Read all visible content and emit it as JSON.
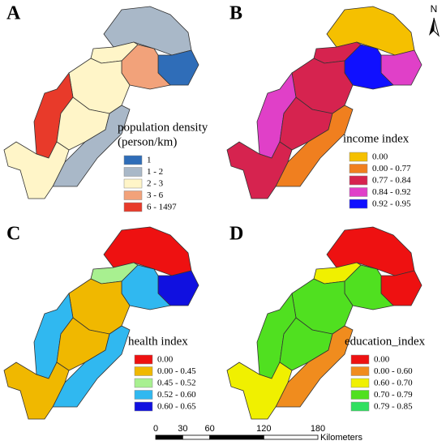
{
  "north": "N",
  "panels": [
    {
      "letter": "A",
      "legend": {
        "title": [
          "population density",
          "(person/km)"
        ],
        "items": [
          {
            "label": "1",
            "color": "#2f6db8"
          },
          {
            "label": "1 - 2",
            "color": "#a9b8c8"
          },
          {
            "label": "2 - 3",
            "color": "#fff5c8"
          },
          {
            "label": "3 - 6",
            "color": "#f2a27a"
          },
          {
            "label": "6 - 1497",
            "color": "#e83a2a"
          }
        ]
      }
    },
    {
      "letter": "B",
      "legend": {
        "title": [
          "income index"
        ],
        "items": [
          {
            "label": "0.00",
            "color": "#f5c000"
          },
          {
            "label": "0.00 - 0.77",
            "color": "#f07f1f"
          },
          {
            "label": "0.77 - 0.84",
            "color": "#d6234f"
          },
          {
            "label": "0.84 - 0.92",
            "color": "#e040c8"
          },
          {
            "label": "0.92 - 0.95",
            "color": "#1010ff"
          }
        ]
      }
    },
    {
      "letter": "C",
      "legend": {
        "title": [
          "health index"
        ],
        "items": [
          {
            "label": "0.00",
            "color": "#ee1111"
          },
          {
            "label": "0.00 - 0.45",
            "color": "#f0b800"
          },
          {
            "label": "0.45 - 0.52",
            "color": "#a8f090"
          },
          {
            "label": "0.52 - 0.60",
            "color": "#30b8f0"
          },
          {
            "label": "0.60 - 0.65",
            "color": "#1010e0"
          }
        ]
      }
    },
    {
      "letter": "D",
      "legend": {
        "title": [
          "education_index"
        ],
        "items": [
          {
            "label": "0.00",
            "color": "#ee1111"
          },
          {
            "label": "0.00 - 0.60",
            "color": "#f08c1e"
          },
          {
            "label": "0.60 - 0.70",
            "color": "#f0f000"
          },
          {
            "label": "0.70 - 0.79",
            "color": "#50e020"
          },
          {
            "label": "0.79 - 0.85",
            "color": "#30e060"
          }
        ]
      }
    }
  ],
  "scale": {
    "ticks": [
      "0",
      "30",
      "60",
      "120",
      "180"
    ],
    "unit": "Kilometers"
  }
}
